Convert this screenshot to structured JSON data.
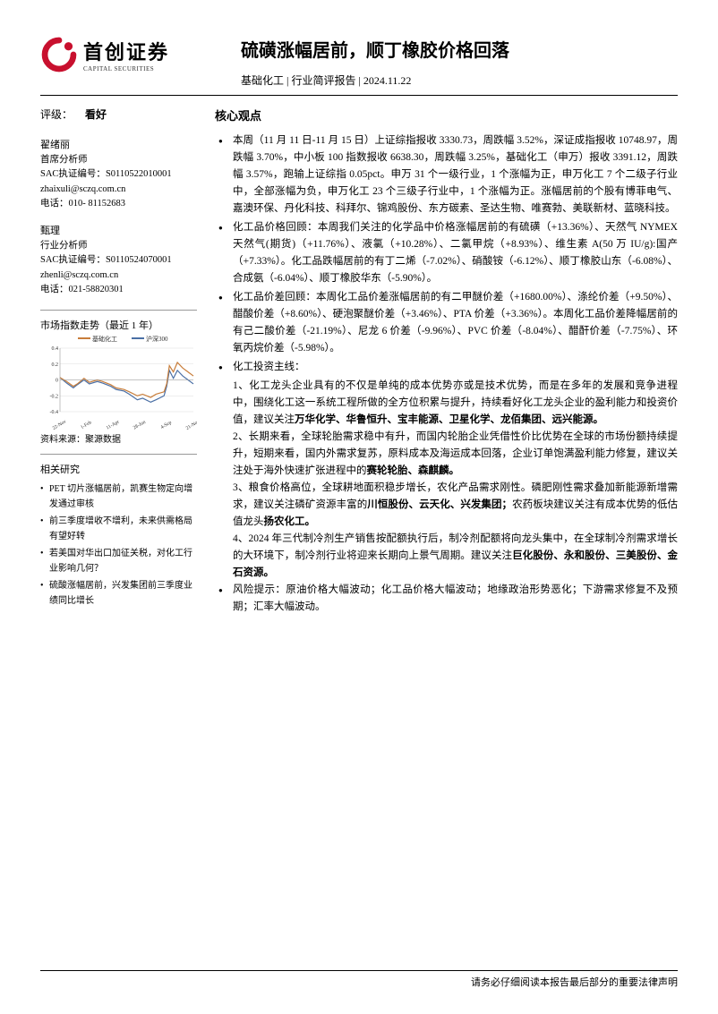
{
  "logo": {
    "cn": "首创证券",
    "en": "CAPITAL SECURITIES",
    "color": "#c8102e"
  },
  "header": {
    "title": "硫磺涨幅居前，顺丁橡胶价格回落",
    "category": "基础化工",
    "report_type": "行业简评报告",
    "date": "2024.11.22"
  },
  "rating": {
    "label": "评级：",
    "value": "看好"
  },
  "analysts": [
    {
      "name": "翟绪丽",
      "title": "首席分析师",
      "sac_label": "SAC执证编号：",
      "sac": "S0110522010001",
      "email": "zhaixuli@sczq.com.cn",
      "phone_label": "电话：",
      "phone": "010- 81152683"
    },
    {
      "name": "甄理",
      "title": "行业分析师",
      "sac_label": "SAC执证编号：",
      "sac": "S0110524070001",
      "email": "zhenli@sczq.com.cn",
      "phone_label": "电话：",
      "phone": "021-58820301"
    }
  ],
  "chart": {
    "title": "市场指数走势（最近 1 年）",
    "source": "资料来源：聚源数据",
    "series": [
      {
        "name": "基础化工",
        "color": "#c87d3a"
      },
      {
        "name": "沪深300",
        "color": "#4a6fa5"
      }
    ],
    "y_ticks": [
      "0.4",
      "0.2",
      "0",
      "-0.2",
      "-0.4"
    ],
    "x_ticks": [
      "22-Nov",
      "1-Feb",
      "11-Apr",
      "28-Jun",
      "4-Sep",
      "21-Nov"
    ],
    "line1": [
      [
        0,
        0.03
      ],
      [
        0.05,
        -0.02
      ],
      [
        0.1,
        -0.08
      ],
      [
        0.13,
        -0.05
      ],
      [
        0.18,
        0.02
      ],
      [
        0.22,
        -0.03
      ],
      [
        0.28,
        0.0
      ],
      [
        0.32,
        -0.02
      ],
      [
        0.38,
        -0.06
      ],
      [
        0.42,
        -0.1
      ],
      [
        0.48,
        -0.12
      ],
      [
        0.52,
        -0.15
      ],
      [
        0.58,
        -0.2
      ],
      [
        0.62,
        -0.18
      ],
      [
        0.68,
        -0.22
      ],
      [
        0.72,
        -0.18
      ],
      [
        0.78,
        -0.15
      ],
      [
        0.8,
        -0.05
      ],
      [
        0.82,
        0.18
      ],
      [
        0.85,
        0.1
      ],
      [
        0.88,
        0.22
      ],
      [
        0.92,
        0.15
      ],
      [
        0.96,
        0.1
      ],
      [
        1.0,
        0.05
      ]
    ],
    "line2": [
      [
        0,
        0.03
      ],
      [
        0.05,
        -0.04
      ],
      [
        0.1,
        -0.1
      ],
      [
        0.13,
        -0.06
      ],
      [
        0.18,
        0.0
      ],
      [
        0.22,
        -0.05
      ],
      [
        0.28,
        -0.02
      ],
      [
        0.32,
        -0.04
      ],
      [
        0.38,
        -0.08
      ],
      [
        0.42,
        -0.12
      ],
      [
        0.48,
        -0.14
      ],
      [
        0.52,
        -0.18
      ],
      [
        0.58,
        -0.25
      ],
      [
        0.62,
        -0.23
      ],
      [
        0.68,
        -0.28
      ],
      [
        0.72,
        -0.25
      ],
      [
        0.78,
        -0.2
      ],
      [
        0.8,
        -0.08
      ],
      [
        0.82,
        0.12
      ],
      [
        0.85,
        0.02
      ],
      [
        0.88,
        0.12
      ],
      [
        0.92,
        0.05
      ],
      [
        0.96,
        0.0
      ],
      [
        1.0,
        -0.05
      ]
    ],
    "y_min": -0.4,
    "y_max": 0.4
  },
  "related": {
    "title": "相关研究",
    "items": [
      "PET 切片涨幅居前，凯赛生物定向增发通过审核",
      "前三季度增收不增利，未来供需格局有望好转",
      "若美国对华出口加征关税，对化工行业影响几何？",
      "硫酸涨幅居前，兴发集团前三季度业绩同比增长"
    ]
  },
  "core": {
    "heading": "核心观点",
    "p1": "本周（11 月 11 日-11 月 15 日）上证综指报收 3330.73，周跌幅 3.52%，深证成指报收 10748.97，周跌幅 3.70%，中小板 100 指数报收 6638.30，周跌幅 3.25%，基础化工（申万）报收 3391.12，周跌幅 3.57%，跑输上证综指 0.05pct。申万 31 个一级行业，1 个涨幅为正，申万化工 7 个二级子行业中，全部涨幅为负，申万化工 23 个三级子行业中，1 个涨幅为正。涨幅居前的个股有博菲电气、嘉澳环保、丹化科技、科拜尔、锦鸡股份、东方碳素、圣达生物、唯赛勃、美联新材、蓝晓科技。",
    "p2": "化工品价格回顾：本周我们关注的化学品中价格涨幅居前的有硫磺（+13.36%）、天然气 NYMEX 天然气(期货)（+11.76%）、液氯（+10.28%）、二氯甲烷（+8.93%）、维生素 A(50 万 IU/g):国产（+7.33%）。化工品跌幅居前的有丁二烯（-7.02%）、硝酸铵（-6.12%）、顺丁橡胶山东（-6.08%）、合成氨（-6.04%）、顺丁橡胶华东（-5.90%）。",
    "p3": "化工品价差回顾：本周化工品价差涨幅居前的有二甲醚价差（+1680.00%）、涤纶价差（+9.50%）、醋酸价差（+8.60%）、硬泡聚醚价差（+3.46%）、PTA 价差（+3.36%）。本周化工品价差降幅居前的有己二酸价差（-21.19%）、尼龙 6 价差（-9.96%）、PVC 价差（-8.04%）、醋酐价差（-7.75%）、环氧丙烷价差（-5.98%）。",
    "p4_lead": "化工投资主线：",
    "sp1_a": "1、化工龙头企业具有的不仅是单纯的成本优势亦或是技术优势，而是在多年的发展和竞争进程中，围绕化工这一系统工程所做的全方位积累与提升，持续看好化工龙头企业的盈利能力和投资价值，建议关注",
    "sp1_b": "万华化学、华鲁恒升、宝丰能源、卫星化学、龙佰集团、远兴能源。",
    "sp2_a": "2、长期来看，全球轮胎需求稳中有升，而国内轮胎企业凭借性价比优势在全球的市场份额持续提升，短期来看，国内外需求复苏，原料成本及海运成本回落，企业订单饱满盈利能力修复，建议关注处于海外快速扩张进程中的",
    "sp2_b": "赛轮轮胎、森麒麟。",
    "sp3_a": "3、粮食价格高位，全球耕地面积稳步增长，农化产品需求刚性。磷肥刚性需求叠加新能源新增需求，建议关注磷矿资源丰富的",
    "sp3_b": "川恒股份、云天化、兴发集团；",
    "sp3_c": "农药板块建议关注有成本优势的低估值龙头",
    "sp3_d": "扬农化工。",
    "sp4_a": "4、2024 年三代制冷剂生产销售按配额执行后，制冷剂配额将向龙头集中，在全球制冷剂需求增长的大环境下，制冷剂行业将迎来长期向上景气周期。建议关注",
    "sp4_b": "巨化股份、永和股份、三美股份、金石资源。",
    "p5": "风险提示：原油价格大幅波动；化工品价格大幅波动；地缘政治形势恶化；下游需求修复不及预期；汇率大幅波动。"
  },
  "footer": "请务必仔细阅读本报告最后部分的重要法律声明"
}
